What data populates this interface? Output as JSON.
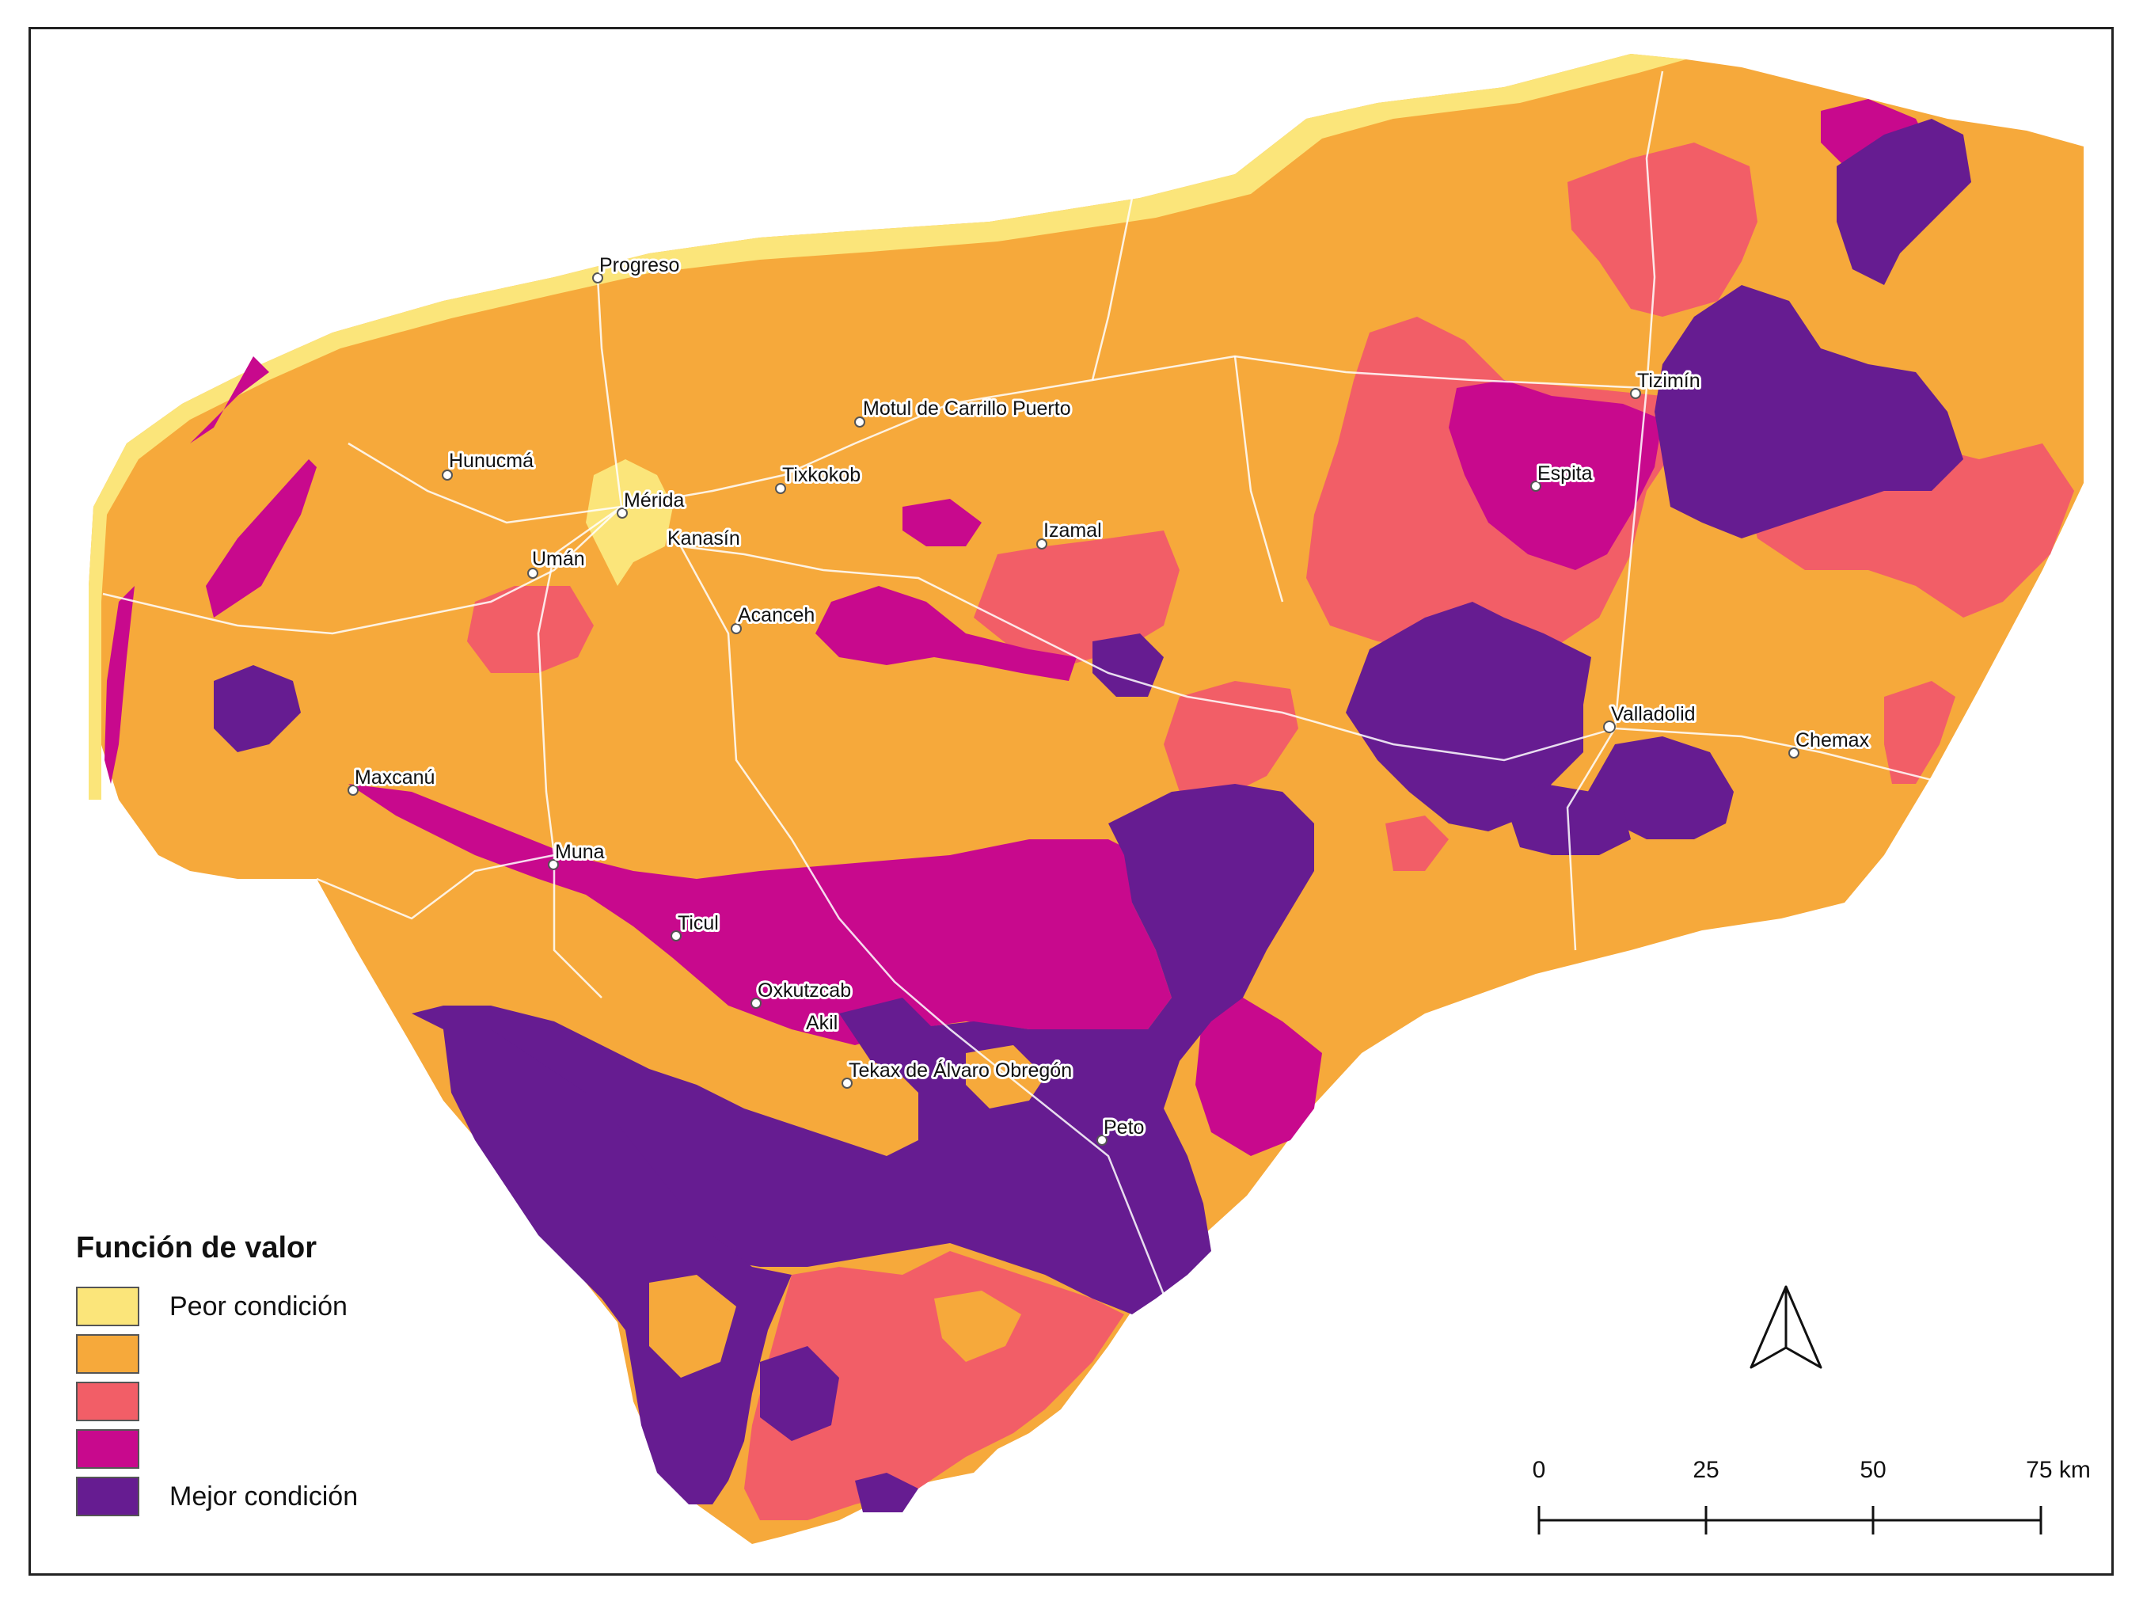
{
  "legend": {
    "title": "Función de valor",
    "items": [
      {
        "label": "Peor condición",
        "color": "#fbe57a"
      },
      {
        "label": "",
        "color": "#f6a93b"
      },
      {
        "label": "",
        "color": "#f25e67"
      },
      {
        "label": "",
        "color": "#c8098d"
      },
      {
        "label": "Mejor condición",
        "color": "#661c91"
      }
    ]
  },
  "scale_bar": {
    "ticks": [
      "0",
      "25",
      "50",
      "75 km"
    ]
  },
  "north_arrow": {
    "icon": "north-arrow-icon"
  },
  "cities": [
    {
      "name": "Progreso"
    },
    {
      "name": "Motul de Carrillo Puerto"
    },
    {
      "name": "Hunucmá"
    },
    {
      "name": "Tixkokob"
    },
    {
      "name": "Mérida"
    },
    {
      "name": "Kanasín"
    },
    {
      "name": "Izamal"
    },
    {
      "name": "Umán"
    },
    {
      "name": "Acanceh"
    },
    {
      "name": "Tizimín"
    },
    {
      "name": "Espita"
    },
    {
      "name": "Valladolid"
    },
    {
      "name": "Chemax"
    },
    {
      "name": "Maxcanú"
    },
    {
      "name": "Muna"
    },
    {
      "name": "Ticul"
    },
    {
      "name": "Oxkutzcab"
    },
    {
      "name": "Akil"
    },
    {
      "name": "Tekax de Álvaro Obregón"
    },
    {
      "name": "Peto"
    }
  ]
}
